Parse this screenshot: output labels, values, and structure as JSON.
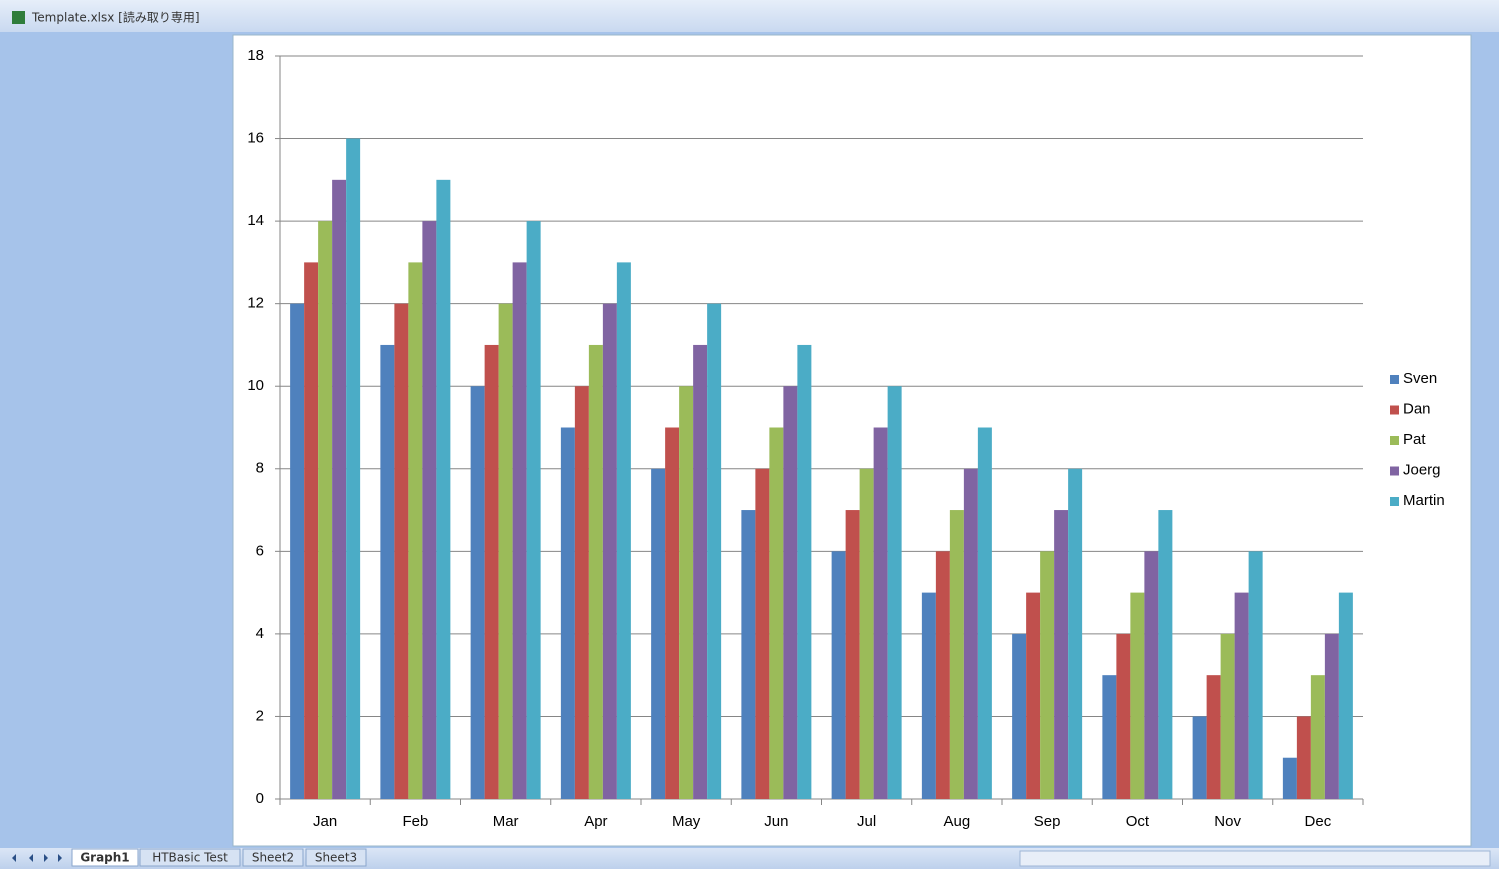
{
  "window": {
    "title": "Template.xlsx  [読み取り専用]"
  },
  "sheet_tabs": [
    "Graph1",
    "HTBasic Test",
    "Sheet2",
    "Sheet3"
  ],
  "chart_data": {
    "type": "bar",
    "categories": [
      "Jan",
      "Feb",
      "Mar",
      "Apr",
      "May",
      "Jun",
      "Jul",
      "Aug",
      "Sep",
      "Oct",
      "Nov",
      "Dec"
    ],
    "series": [
      {
        "name": "Sven",
        "color": "#4f81bd",
        "values": [
          12,
          11,
          10,
          9,
          8,
          7,
          6,
          5,
          4,
          3,
          2,
          1
        ]
      },
      {
        "name": "Dan",
        "color": "#c0504d",
        "values": [
          13,
          12,
          11,
          10,
          9,
          8,
          7,
          6,
          5,
          4,
          3,
          2
        ]
      },
      {
        "name": "Pat",
        "color": "#9bbb59",
        "values": [
          14,
          13,
          12,
          11,
          10,
          9,
          8,
          7,
          6,
          5,
          4,
          3
        ]
      },
      {
        "name": "Joerg",
        "color": "#8064a2",
        "values": [
          15,
          14,
          13,
          12,
          11,
          10,
          9,
          8,
          7,
          6,
          5,
          4
        ]
      },
      {
        "name": "Martin",
        "color": "#4bacc6",
        "values": [
          16,
          15,
          14,
          13,
          12,
          11,
          10,
          9,
          8,
          7,
          6,
          5
        ]
      }
    ],
    "ylim": [
      0,
      18
    ],
    "yticks": [
      0,
      2,
      4,
      6,
      8,
      10,
      12,
      14,
      16,
      18
    ],
    "grid": true,
    "legend": "right"
  }
}
